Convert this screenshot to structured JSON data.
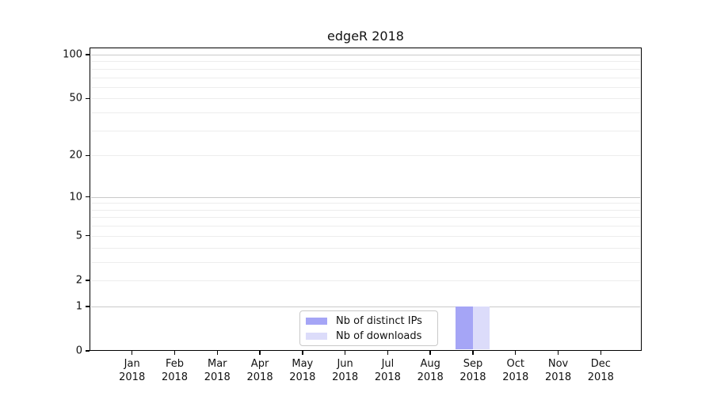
{
  "chart_data": {
    "type": "bar",
    "title": "edgeR 2018",
    "xlabel": "",
    "ylabel": "",
    "categories": [
      "Jan",
      "Feb",
      "Mar",
      "Apr",
      "May",
      "Jun",
      "Jul",
      "Aug",
      "Sep",
      "Oct",
      "Nov",
      "Dec"
    ],
    "year_label": "2018",
    "series": [
      {
        "name": "Nb of distinct IPs",
        "color": "#a5a5f6",
        "values": [
          0,
          0,
          0,
          0,
          0,
          0,
          0,
          0,
          1,
          0,
          0,
          0
        ]
      },
      {
        "name": "Nb of downloads",
        "color": "#dcdcfa",
        "values": [
          0,
          0,
          0,
          0,
          0,
          0,
          0,
          0,
          1,
          0,
          0,
          0
        ]
      }
    ],
    "yticks": [
      0,
      1,
      2,
      5,
      10,
      20,
      50,
      100
    ],
    "ylim": [
      0,
      112
    ],
    "yscale": "log1p",
    "grid": {
      "on": true,
      "major_lines": [
        1,
        10,
        100
      ],
      "minor_lines": [
        2,
        3,
        4,
        5,
        6,
        7,
        8,
        9,
        20,
        30,
        40,
        50,
        60,
        70,
        80,
        90
      ],
      "major_color": "#c9c9c9",
      "minor_color": "#ededed"
    },
    "legend_position": "lower center",
    "axis_color": "#000000",
    "background_color": "#ffffff"
  }
}
